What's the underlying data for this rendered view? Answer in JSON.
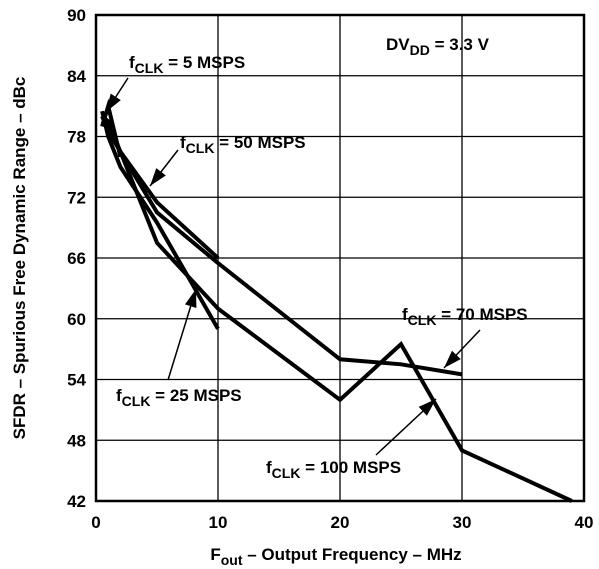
{
  "chart_data": {
    "type": "line",
    "xlabel": {
      "main": "F",
      "sub": "out",
      "rest": " – Output Frequency – MHz"
    },
    "ylabel": "SFDR – Spurious Free Dynamic Range – dBc",
    "xlim": [
      0,
      40
    ],
    "ylim": [
      42,
      90
    ],
    "x_ticks": [
      "0",
      "10",
      "20",
      "30",
      "40"
    ],
    "y_ticks": [
      "42",
      "48",
      "54",
      "60",
      "66",
      "72",
      "78",
      "84",
      "90"
    ],
    "grid": true,
    "annotation": {
      "main": "DV",
      "sub": "DD",
      "rest": " = 3.3 V"
    },
    "series": [
      {
        "name": {
          "main": "f",
          "sub": "CLK",
          "rest": " = 5 MSPS"
        },
        "x": [
          0.5,
          1,
          1.5,
          2
        ],
        "y": [
          79.0,
          81.0,
          78.5,
          76.0
        ]
      },
      {
        "name": {
          "main": "f",
          "sub": "CLK",
          "rest": " = 25 MSPS"
        },
        "x": [
          0.5,
          1,
          2,
          5,
          10
        ],
        "y": [
          80.5,
          78.0,
          75.0,
          69.5,
          59.0
        ]
      },
      {
        "name": {
          "main": "f",
          "sub": "CLK",
          "rest": " = 50 MSPS"
        },
        "x": [
          0.5,
          1,
          2,
          5,
          10
        ],
        "y": [
          80.0,
          78.5,
          76.5,
          71.5,
          66.0
        ]
      },
      {
        "name": {
          "main": "f",
          "sub": "CLK",
          "rest": " = 70 MSPS"
        },
        "x": [
          0.5,
          1,
          2,
          5,
          10,
          20,
          25,
          30
        ],
        "y": [
          79.5,
          79.0,
          76.5,
          70.5,
          65.5,
          56.0,
          55.5,
          54.5
        ]
      },
      {
        "name": {
          "main": "f",
          "sub": "CLK",
          "rest": " = 100 MSPS"
        },
        "x": [
          0.5,
          1,
          2,
          5,
          10,
          20,
          25,
          30,
          39
        ],
        "y": [
          80.0,
          79.5,
          76.5,
          67.5,
          61.0,
          52.0,
          57.5,
          47.0,
          42.0
        ]
      }
    ]
  }
}
